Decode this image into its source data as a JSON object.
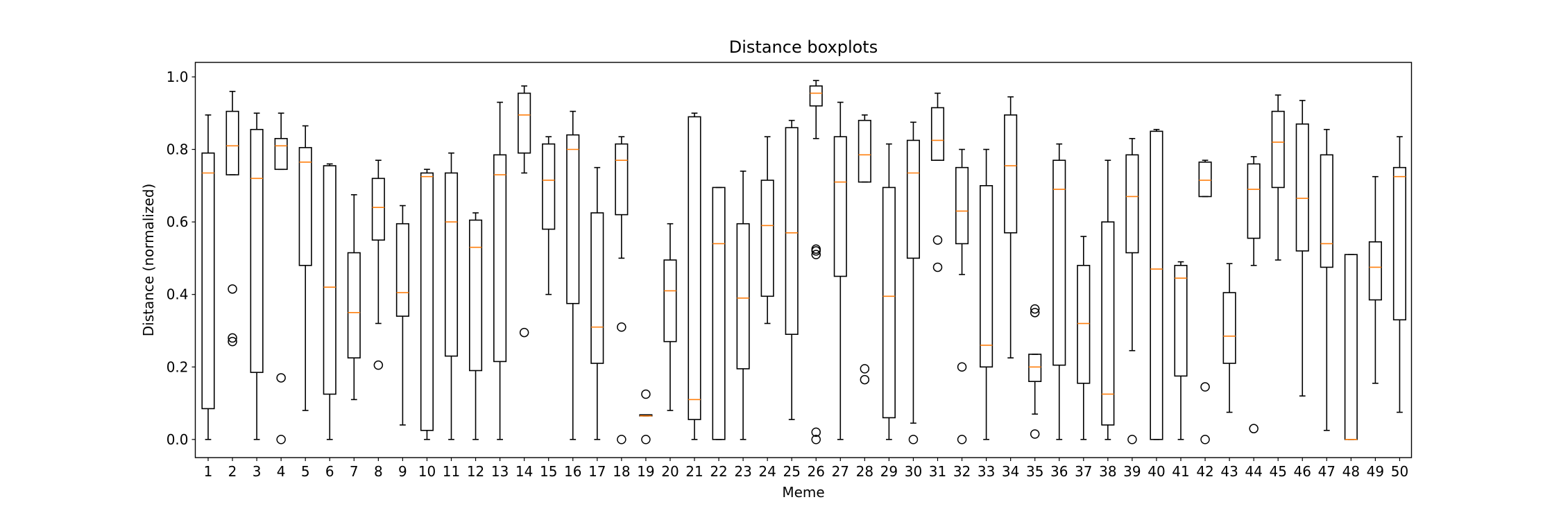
{
  "chart_data": {
    "type": "boxplot",
    "title": "Distance boxplots",
    "xlabel": "Meme",
    "ylabel": "Distance (normalized)",
    "ylim": [
      -0.05,
      1.04
    ],
    "yticks": [
      "0.0",
      "0.2",
      "0.4",
      "0.6",
      "0.8",
      "1.0"
    ],
    "colors": {
      "box": "#000000",
      "median": "#ff7f0e",
      "background": "#ffffff"
    },
    "grid": false,
    "boxes": [
      {
        "label": "1",
        "whislo": 0.0,
        "q1": 0.085,
        "med": 0.735,
        "q3": 0.79,
        "whishi": 0.895,
        "fliers": []
      },
      {
        "label": "2",
        "whislo": 0.73,
        "q1": 0.73,
        "med": 0.81,
        "q3": 0.905,
        "whishi": 0.96,
        "fliers": [
          0.415,
          0.28,
          0.27
        ]
      },
      {
        "label": "3",
        "whislo": 0.0,
        "q1": 0.185,
        "med": 0.72,
        "q3": 0.855,
        "whishi": 0.9,
        "fliers": []
      },
      {
        "label": "4",
        "whislo": 0.745,
        "q1": 0.745,
        "med": 0.81,
        "q3": 0.83,
        "whishi": 0.9,
        "fliers": [
          0.17,
          0.0
        ]
      },
      {
        "label": "5",
        "whislo": 0.08,
        "q1": 0.48,
        "med": 0.765,
        "q3": 0.805,
        "whishi": 0.865,
        "fliers": []
      },
      {
        "label": "6",
        "whislo": 0.0,
        "q1": 0.125,
        "med": 0.42,
        "q3": 0.755,
        "whishi": 0.76,
        "fliers": []
      },
      {
        "label": "7",
        "whislo": 0.11,
        "q1": 0.225,
        "med": 0.35,
        "q3": 0.515,
        "whishi": 0.675,
        "fliers": []
      },
      {
        "label": "8",
        "whislo": 0.32,
        "q1": 0.55,
        "med": 0.64,
        "q3": 0.72,
        "whishi": 0.77,
        "fliers": [
          0.205
        ]
      },
      {
        "label": "9",
        "whislo": 0.04,
        "q1": 0.34,
        "med": 0.405,
        "q3": 0.595,
        "whishi": 0.645,
        "fliers": []
      },
      {
        "label": "10",
        "whislo": 0.0,
        "q1": 0.025,
        "med": 0.725,
        "q3": 0.735,
        "whishi": 0.745,
        "fliers": []
      },
      {
        "label": "11",
        "whislo": 0.0,
        "q1": 0.23,
        "med": 0.6,
        "q3": 0.735,
        "whishi": 0.79,
        "fliers": []
      },
      {
        "label": "12",
        "whislo": 0.0,
        "q1": 0.19,
        "med": 0.53,
        "q3": 0.605,
        "whishi": 0.625,
        "fliers": []
      },
      {
        "label": "13",
        "whislo": 0.0,
        "q1": 0.215,
        "med": 0.73,
        "q3": 0.785,
        "whishi": 0.93,
        "fliers": []
      },
      {
        "label": "14",
        "whislo": 0.735,
        "q1": 0.79,
        "med": 0.895,
        "q3": 0.955,
        "whishi": 0.975,
        "fliers": [
          0.295
        ]
      },
      {
        "label": "15",
        "whislo": 0.4,
        "q1": 0.58,
        "med": 0.715,
        "q3": 0.815,
        "whishi": 0.835,
        "fliers": []
      },
      {
        "label": "16",
        "whislo": 0.0,
        "q1": 0.375,
        "med": 0.8,
        "q3": 0.84,
        "whishi": 0.905,
        "fliers": []
      },
      {
        "label": "17",
        "whislo": 0.0,
        "q1": 0.21,
        "med": 0.31,
        "q3": 0.625,
        "whishi": 0.75,
        "fliers": []
      },
      {
        "label": "18",
        "whislo": 0.5,
        "q1": 0.62,
        "med": 0.77,
        "q3": 0.815,
        "whishi": 0.835,
        "fliers": [
          0.31,
          0.0
        ]
      },
      {
        "label": "19",
        "whislo": 0.065,
        "q1": 0.065,
        "med": 0.065,
        "q3": 0.068,
        "whishi": 0.068,
        "fliers": [
          0.125,
          0.0
        ]
      },
      {
        "label": "20",
        "whislo": 0.08,
        "q1": 0.27,
        "med": 0.41,
        "q3": 0.495,
        "whishi": 0.595,
        "fliers": []
      },
      {
        "label": "21",
        "whislo": 0.0,
        "q1": 0.055,
        "med": 0.11,
        "q3": 0.89,
        "whishi": 0.9,
        "fliers": []
      },
      {
        "label": "22",
        "whislo": 0.0,
        "q1": 0.0,
        "med": 0.54,
        "q3": 0.695,
        "whishi": 0.695,
        "fliers": []
      },
      {
        "label": "23",
        "whislo": 0.0,
        "q1": 0.195,
        "med": 0.39,
        "q3": 0.595,
        "whishi": 0.74,
        "fliers": []
      },
      {
        "label": "24",
        "whislo": 0.32,
        "q1": 0.395,
        "med": 0.59,
        "q3": 0.715,
        "whishi": 0.835,
        "fliers": []
      },
      {
        "label": "25",
        "whislo": 0.055,
        "q1": 0.29,
        "med": 0.57,
        "q3": 0.86,
        "whishi": 0.88,
        "fliers": []
      },
      {
        "label": "26",
        "whislo": 0.83,
        "q1": 0.92,
        "med": 0.955,
        "q3": 0.975,
        "whishi": 0.99,
        "fliers": [
          0.525,
          0.52,
          0.51,
          0.02,
          0.0
        ]
      },
      {
        "label": "27",
        "whislo": 0.0,
        "q1": 0.45,
        "med": 0.71,
        "q3": 0.835,
        "whishi": 0.93,
        "fliers": []
      },
      {
        "label": "28",
        "whislo": 0.71,
        "q1": 0.71,
        "med": 0.785,
        "q3": 0.88,
        "whishi": 0.895,
        "fliers": [
          0.195,
          0.165
        ]
      },
      {
        "label": "29",
        "whislo": 0.0,
        "q1": 0.06,
        "med": 0.395,
        "q3": 0.695,
        "whishi": 0.815,
        "fliers": []
      },
      {
        "label": "30",
        "whislo": 0.045,
        "q1": 0.5,
        "med": 0.735,
        "q3": 0.825,
        "whishi": 0.875,
        "fliers": [
          0.0
        ]
      },
      {
        "label": "31",
        "whislo": 0.77,
        "q1": 0.77,
        "med": 0.825,
        "q3": 0.915,
        "whishi": 0.955,
        "fliers": [
          0.55,
          0.475
        ]
      },
      {
        "label": "32",
        "whislo": 0.455,
        "q1": 0.54,
        "med": 0.63,
        "q3": 0.75,
        "whishi": 0.8,
        "fliers": [
          0.2,
          0.0
        ]
      },
      {
        "label": "33",
        "whislo": 0.0,
        "q1": 0.2,
        "med": 0.26,
        "q3": 0.7,
        "whishi": 0.8,
        "fliers": []
      },
      {
        "label": "34",
        "whislo": 0.225,
        "q1": 0.57,
        "med": 0.755,
        "q3": 0.895,
        "whishi": 0.945,
        "fliers": []
      },
      {
        "label": "35",
        "whislo": 0.07,
        "q1": 0.16,
        "med": 0.2,
        "q3": 0.235,
        "whishi": 0.235,
        "fliers": [
          0.36,
          0.35,
          0.015
        ]
      },
      {
        "label": "36",
        "whislo": 0.0,
        "q1": 0.205,
        "med": 0.69,
        "q3": 0.77,
        "whishi": 0.815,
        "fliers": []
      },
      {
        "label": "37",
        "whislo": 0.0,
        "q1": 0.155,
        "med": 0.32,
        "q3": 0.48,
        "whishi": 0.56,
        "fliers": []
      },
      {
        "label": "38",
        "whislo": 0.0,
        "q1": 0.04,
        "med": 0.125,
        "q3": 0.6,
        "whishi": 0.77,
        "fliers": []
      },
      {
        "label": "39",
        "whislo": 0.245,
        "q1": 0.515,
        "med": 0.67,
        "q3": 0.785,
        "whishi": 0.83,
        "fliers": [
          0.0
        ]
      },
      {
        "label": "40",
        "whislo": 0.0,
        "q1": 0.0,
        "med": 0.47,
        "q3": 0.85,
        "whishi": 0.855,
        "fliers": []
      },
      {
        "label": "41",
        "whislo": 0.0,
        "q1": 0.175,
        "med": 0.445,
        "q3": 0.48,
        "whishi": 0.49,
        "fliers": []
      },
      {
        "label": "42",
        "whislo": 0.67,
        "q1": 0.67,
        "med": 0.715,
        "q3": 0.765,
        "whishi": 0.77,
        "fliers": [
          0.145,
          0.0
        ]
      },
      {
        "label": "43",
        "whislo": 0.075,
        "q1": 0.21,
        "med": 0.285,
        "q3": 0.405,
        "whishi": 0.485,
        "fliers": []
      },
      {
        "label": "44",
        "whislo": 0.48,
        "q1": 0.555,
        "med": 0.69,
        "q3": 0.76,
        "whishi": 0.78,
        "fliers": [
          0.03
        ]
      },
      {
        "label": "45",
        "whislo": 0.495,
        "q1": 0.695,
        "med": 0.82,
        "q3": 0.905,
        "whishi": 0.95,
        "fliers": []
      },
      {
        "label": "46",
        "whislo": 0.12,
        "q1": 0.52,
        "med": 0.665,
        "q3": 0.87,
        "whishi": 0.935,
        "fliers": []
      },
      {
        "label": "47",
        "whislo": 0.025,
        "q1": 0.475,
        "med": 0.54,
        "q3": 0.785,
        "whishi": 0.855,
        "fliers": []
      },
      {
        "label": "48",
        "whislo": 0.0,
        "q1": 0.0,
        "med": 0.0,
        "q3": 0.51,
        "whishi": 0.51,
        "fliers": []
      },
      {
        "label": "49",
        "whislo": 0.155,
        "q1": 0.385,
        "med": 0.475,
        "q3": 0.545,
        "whishi": 0.725,
        "fliers": []
      },
      {
        "label": "50",
        "whislo": 0.075,
        "q1": 0.33,
        "med": 0.725,
        "q3": 0.75,
        "whishi": 0.835,
        "fliers": []
      }
    ]
  }
}
